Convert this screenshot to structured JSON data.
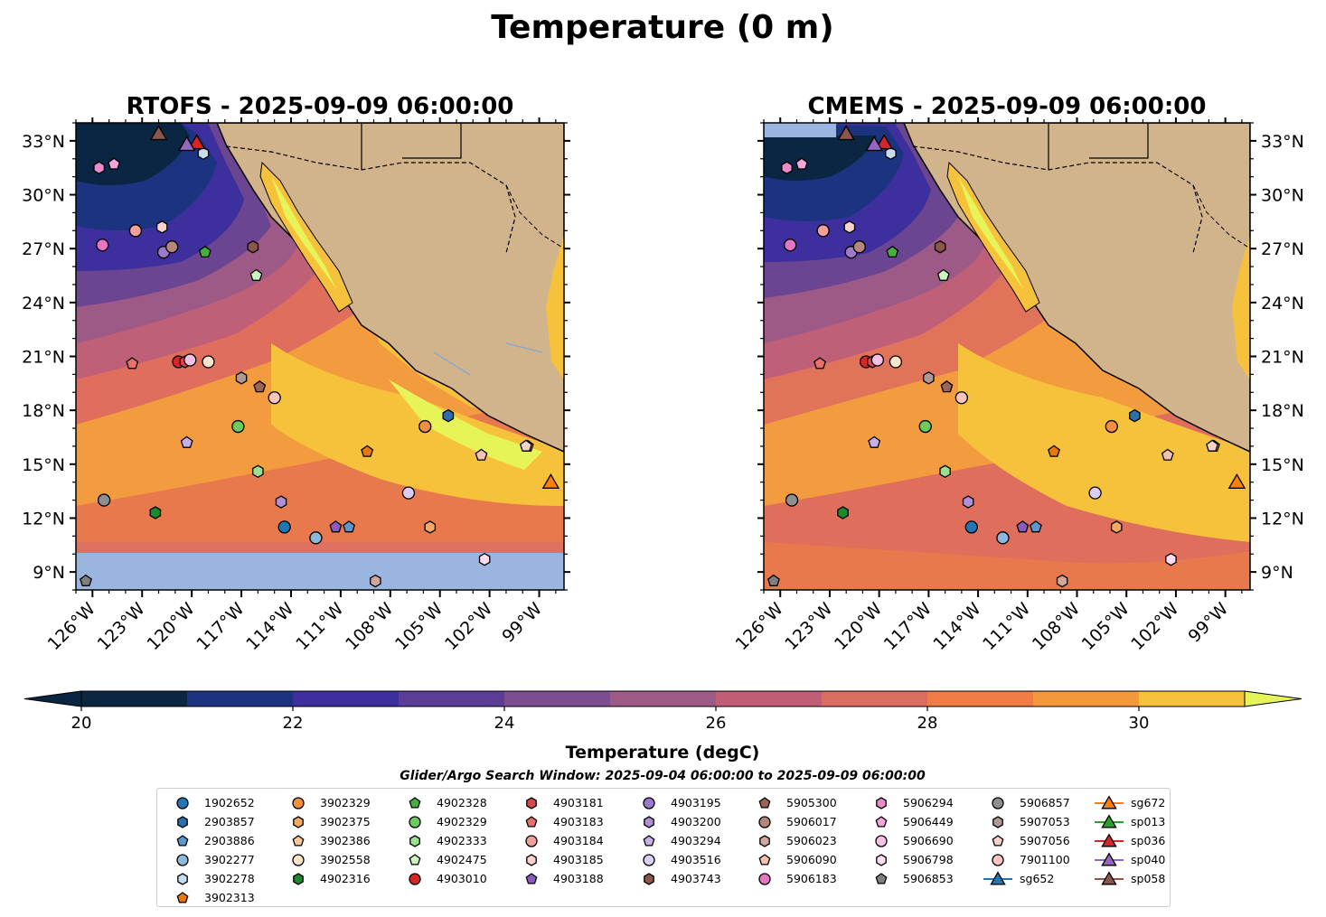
{
  "figure_title": "Temperature (0 m)",
  "colorbar": {
    "label": "Temperature (degC)",
    "ticks": [
      "20",
      "22",
      "24",
      "26",
      "28",
      "30"
    ],
    "range": [
      20,
      31
    ],
    "colors": [
      "#0b2642",
      "#1c3380",
      "#3d2f9d",
      "#5b3d96",
      "#7c4d90",
      "#9e5a86",
      "#c05e76",
      "#dd6c60",
      "#f07d45",
      "#f5983c",
      "#f6c23c",
      "#e6f45a"
    ]
  },
  "search_window": "Glider/Argo Search Window: 2025-09-04 06:00:00 to 2025-09-09 06:00:00",
  "chart_data": [
    {
      "type": "heatmap",
      "title": "RTOFS - 2025-09-09 06:00:00",
      "xlabel": "",
      "ylabel": "",
      "xlim": [
        -127,
        -97.5
      ],
      "ylim": [
        8,
        34
      ],
      "xticks": [
        "126°W",
        "123°W",
        "120°W",
        "117°W",
        "114°W",
        "111°W",
        "108°W",
        "105°W",
        "102°W",
        "99°W"
      ],
      "yticks": [
        "33°N",
        "30°N",
        "27°N",
        "24°N",
        "21°N",
        "18°N",
        "15°N",
        "12°N",
        "9°N"
      ],
      "yaxis_side": "left",
      "masked_below_lat": 10.1,
      "units": "degC"
    },
    {
      "type": "heatmap",
      "title": "CMEMS - 2025-09-09 06:00:00",
      "xlabel": "",
      "ylabel": "",
      "xlim": [
        -127,
        -97.5
      ],
      "ylim": [
        8,
        34
      ],
      "xticks": [
        "126°W",
        "123°W",
        "120°W",
        "117°W",
        "114°W",
        "111°W",
        "108°W",
        "105°W",
        "102°W",
        "99°W"
      ],
      "yticks": [
        "33°N",
        "30°N",
        "27°N",
        "24°N",
        "21°N",
        "18°N",
        "15°N",
        "12°N",
        "9°N"
      ],
      "yaxis_side": "right",
      "masked_below_lat": null,
      "units": "degC"
    }
  ],
  "platforms": [
    {
      "id": "1902652",
      "marker": "circle",
      "color": "#1f77b4",
      "lon": -114.4,
      "lat": 11.5
    },
    {
      "id": "2903857",
      "marker": "hexagon",
      "color": "#2a70ac",
      "lon": -104.5,
      "lat": 17.7
    },
    {
      "id": "2903886",
      "marker": "pentagon",
      "color": "#5b97c9",
      "lon": -110.5,
      "lat": 11.5
    },
    {
      "id": "3902277",
      "marker": "circle",
      "color": "#8cb8dc",
      "lon": -112.5,
      "lat": 10.9
    },
    {
      "id": "3902278",
      "marker": "hexagon",
      "color": "#c6ddef",
      "lon": -119.3,
      "lat": 32.3
    },
    {
      "id": "3902313",
      "marker": "pentagon",
      "color": "#e8790e",
      "lon": -109.4,
      "lat": 15.7
    },
    {
      "id": "3902329",
      "marker": "circle",
      "color": "#f29040",
      "lon": -105.9,
      "lat": 17.1
    },
    {
      "id": "3902375",
      "marker": "hexagon",
      "color": "#f5a965",
      "lon": -105.6,
      "lat": 11.5
    },
    {
      "id": "3902386",
      "marker": "pentagon",
      "color": "#f9c89a",
      "lon": -99.7,
      "lat": 16.0
    },
    {
      "id": "3902558",
      "marker": "circle",
      "color": "#fde3c8",
      "lon": -119.0,
      "lat": 20.7
    },
    {
      "id": "4902316",
      "marker": "hexagon",
      "color": "#1a8a2a",
      "lon": -122.2,
      "lat": 12.3
    },
    {
      "id": "4902328",
      "marker": "pentagon",
      "color": "#46b03c",
      "lon": -119.2,
      "lat": 26.8
    },
    {
      "id": "4902329",
      "marker": "circle",
      "color": "#6ccb5f",
      "lon": -117.2,
      "lat": 17.1
    },
    {
      "id": "4902333",
      "marker": "hexagon",
      "color": "#9be090",
      "lon": -116.0,
      "lat": 14.6
    },
    {
      "id": "4902475",
      "marker": "pentagon",
      "color": "#cbf4c2",
      "lon": -116.1,
      "lat": 25.5
    },
    {
      "id": "4903010",
      "marker": "circle",
      "color": "#d62728",
      "lon": -120.8,
      "lat": 20.7
    },
    {
      "id": "4903181",
      "marker": "hexagon",
      "color": "#d8474a",
      "lon": -120.4,
      "lat": 20.7
    },
    {
      "id": "4903183",
      "marker": "pentagon",
      "color": "#e8706a",
      "lon": -123.6,
      "lat": 20.6
    },
    {
      "id": "4903184",
      "marker": "circle",
      "color": "#f2a09b",
      "lon": -123.4,
      "lat": 28.0
    },
    {
      "id": "4903185",
      "marker": "hexagon",
      "color": "#fbd1cd",
      "lon": -121.8,
      "lat": 28.2
    },
    {
      "id": "4903188",
      "marker": "pentagon",
      "color": "#8a5cc2",
      "lon": -111.3,
      "lat": 11.5
    },
    {
      "id": "4903195",
      "marker": "circle",
      "color": "#9b7acb",
      "lon": -121.7,
      "lat": 26.8
    },
    {
      "id": "4903200",
      "marker": "hexagon",
      "color": "#b08fd8",
      "lon": -114.6,
      "lat": 12.9
    },
    {
      "id": "4903294",
      "marker": "pentagon",
      "color": "#c7b0e6",
      "lon": -120.3,
      "lat": 16.2
    },
    {
      "id": "4903516",
      "marker": "circle",
      "color": "#dccdf2",
      "lon": -106.9,
      "lat": 13.4
    },
    {
      "id": "4903743",
      "marker": "hexagon",
      "color": "#8c564b",
      "lon": -116.3,
      "lat": 27.1
    },
    {
      "id": "5905300",
      "marker": "pentagon",
      "color": "#9a6552",
      "lon": -115.9,
      "lat": 19.3
    },
    {
      "id": "5906017",
      "marker": "circle",
      "color": "#b8857a",
      "lon": -121.2,
      "lat": 27.1
    },
    {
      "id": "5906023",
      "marker": "hexagon",
      "color": "#d0a59a",
      "lon": -108.9,
      "lat": 8.5
    },
    {
      "id": "5906090",
      "marker": "pentagon",
      "color": "#f2c2b4",
      "lon": -102.5,
      "lat": 15.5
    },
    {
      "id": "5906183",
      "marker": "circle",
      "color": "#e377c2",
      "lon": -125.4,
      "lat": 27.2
    },
    {
      "id": "5906294",
      "marker": "hexagon",
      "color": "#ea8ccc",
      "lon": -125.6,
      "lat": 31.5
    },
    {
      "id": "5906449",
      "marker": "pentagon",
      "color": "#f3a4d8",
      "lon": -124.7,
      "lat": 31.7
    },
    {
      "id": "5906690",
      "marker": "circle",
      "color": "#f7bfe3",
      "lon": -120.1,
      "lat": 20.8
    },
    {
      "id": "5906798",
      "marker": "hexagon",
      "color": "#fbdcf0",
      "lon": -102.3,
      "lat": 9.7
    },
    {
      "id": "5906853",
      "marker": "pentagon",
      "color": "#7f7f7f",
      "lon": -126.4,
      "lat": 8.5
    },
    {
      "id": "5906857",
      "marker": "circle",
      "color": "#8f8f8f",
      "lon": -125.3,
      "lat": 13.0
    },
    {
      "id": "5907053",
      "marker": "hexagon",
      "color": "#ad9a94",
      "lon": -117.0,
      "lat": 19.8
    },
    {
      "id": "5907056",
      "marker": "pentagon",
      "color": "#f6d3c6",
      "lon": -99.8,
      "lat": 16.0
    },
    {
      "id": "7901100",
      "marker": "circle",
      "color": "#f9c5bd",
      "lon": -115.0,
      "lat": 18.7
    },
    {
      "id": "sg652",
      "marker": "triangle",
      "color": "#1f77b4",
      "lon": null,
      "lat": null
    },
    {
      "id": "sg672",
      "marker": "triangle",
      "color": "#ff7f0e",
      "lon": -98.3,
      "lat": 14.0
    },
    {
      "id": "sp013",
      "marker": "triangle",
      "color": "#2ca02c",
      "lon": null,
      "lat": null
    },
    {
      "id": "sp036",
      "marker": "triangle",
      "color": "#d62728",
      "lon": -119.7,
      "lat": 32.9
    },
    {
      "id": "sp040",
      "marker": "triangle",
      "color": "#9467bd",
      "lon": -120.3,
      "lat": 32.8
    },
    {
      "id": "sp058",
      "marker": "triangle",
      "color": "#8c564b",
      "lon": -122.0,
      "lat": 33.4
    }
  ]
}
